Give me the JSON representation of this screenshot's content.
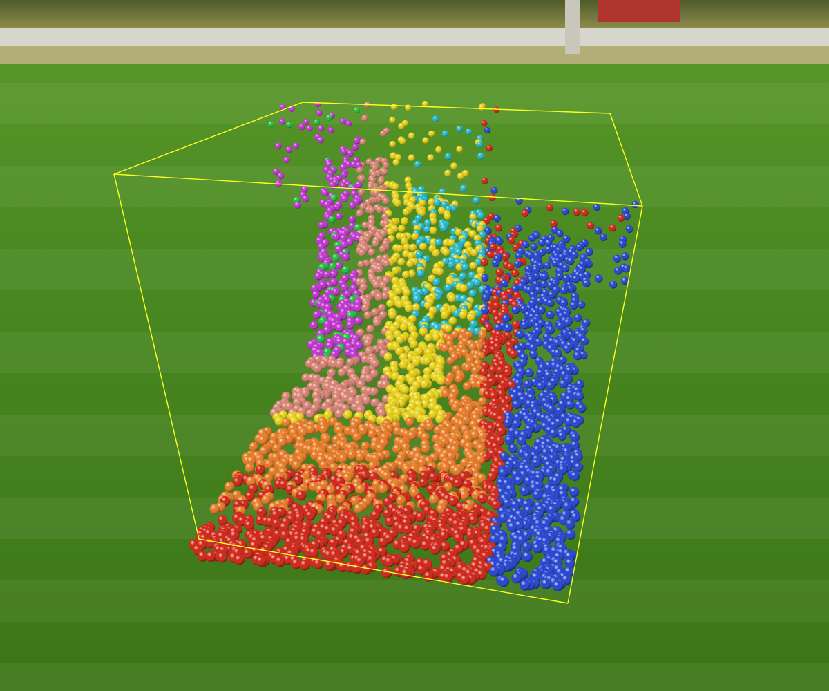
{
  "scene": {
    "background": "mowed-grass-lawn",
    "backdrop_items": [
      "tree-line",
      "road",
      "utility-pole",
      "red-building",
      "tall-grass-strip"
    ],
    "overlay": "fluid-particle-simulation",
    "container": "wireframe-cube"
  },
  "colors": {
    "sky_trees": "#5c6b38",
    "road": "#d7d8cf",
    "building": "#b0352c",
    "tall_grass": "#b6b07a",
    "lawn_far": "#4a8a24",
    "lawn_near": "#3a7418",
    "box_edge": "#ffff22"
  },
  "particle_palette": [
    "magenta",
    "green",
    "cyan",
    "salmon",
    "yellow",
    "orange",
    "red",
    "blue"
  ]
}
